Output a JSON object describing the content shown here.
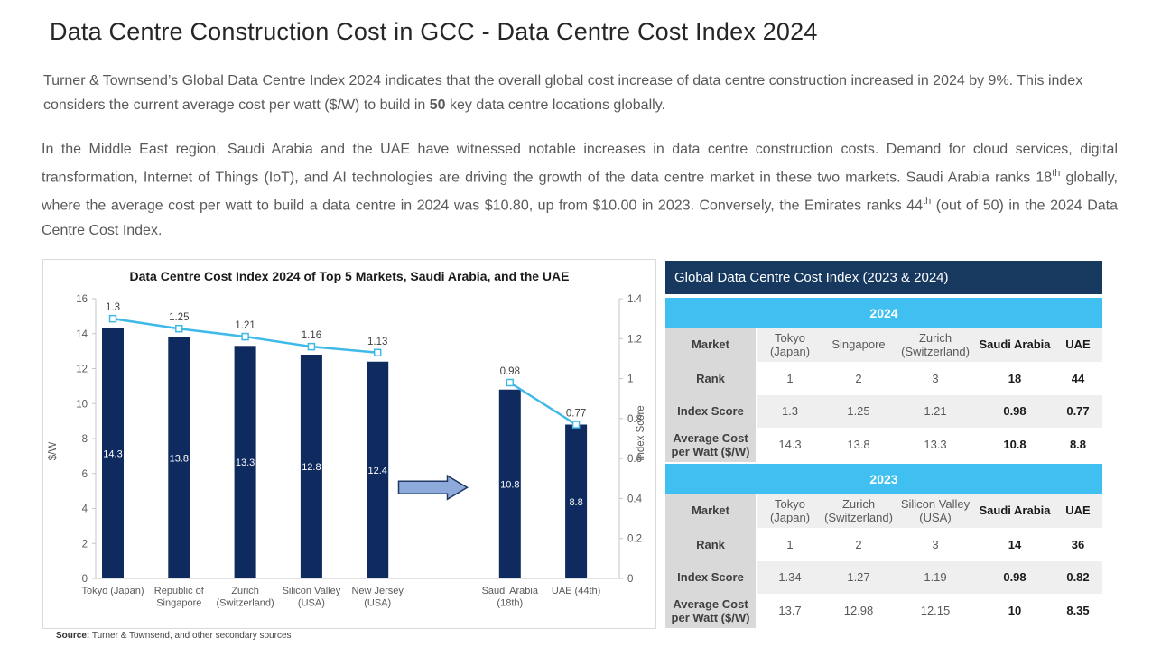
{
  "page": {
    "title": "Data Centre Construction Cost in GCC - Data Centre Cost Index 2024",
    "paragraph1_segments": [
      {
        "text": "Turner & Townsend’s Global Data Centre Index 2024 indicates that the overall global cost increase of data centre construction increased in 2024 by 9%. This index considers the current average cost per watt ($/W) to build in "
      },
      {
        "text": "50",
        "bold": true
      },
      {
        "text": " key data centre locations globally."
      }
    ],
    "paragraph2_segments": [
      {
        "text": "In the Middle East region, Saudi Arabia and the UAE have witnessed notable increases in data centre construction costs. Demand for cloud services, digital transformation, Internet of Things (IoT), and AI technologies are driving the growth of the data centre market in these two markets. Saudi Arabia ranks 18"
      },
      {
        "text": "th",
        "sup": true
      },
      {
        "text": " globally, where the average cost per watt to build a data centre in 2024 was $10.80, up from $10.00 in 2023. Conversely, the Emirates ranks 44"
      },
      {
        "text": "th",
        "sup": true
      },
      {
        "text": " (out of 50) in the 2024 Data Centre Cost Index."
      }
    ],
    "source_label": "Source:",
    "source_text": " Turner & Townsend, and other secondary sources"
  },
  "chart_data": {
    "type": "bar",
    "title": "Data Centre Cost Index 2024  of Top 5 Markets, Saudi Arabia, and the UAE",
    "left_axis": {
      "label": "$/W",
      "min": 0,
      "max": 16,
      "step": 2
    },
    "right_axis": {
      "label": "Index Score",
      "min": 0,
      "max": 1.4,
      "step": 0.2
    },
    "slots": 8,
    "categories": [
      {
        "slot": 0,
        "label_lines": [
          "Tokyo (Japan)"
        ],
        "cost_per_watt": 14.3,
        "index_score": 1.3
      },
      {
        "slot": 1,
        "label_lines": [
          "Republic of",
          "Singapore"
        ],
        "cost_per_watt": 13.8,
        "index_score": 1.25
      },
      {
        "slot": 2,
        "label_lines": [
          "Zurich",
          "(Switzerland)"
        ],
        "cost_per_watt": 13.3,
        "index_score": 1.21
      },
      {
        "slot": 3,
        "label_lines": [
          "Silicon Valley",
          "(USA)"
        ],
        "cost_per_watt": 12.8,
        "index_score": 1.16
      },
      {
        "slot": 4,
        "label_lines": [
          "New Jersey",
          "(USA)"
        ],
        "cost_per_watt": 12.4,
        "index_score": 1.13
      },
      {
        "slot": 6,
        "label_lines": [
          "Saudi Arabia",
          "(18th)"
        ],
        "cost_per_watt": 10.8,
        "index_score": 0.98
      },
      {
        "slot": 7,
        "label_lines": [
          "UAE (44th)"
        ],
        "cost_per_watt": 8.8,
        "index_score": 0.77
      }
    ],
    "line_segments": [
      [
        0,
        1,
        2,
        3,
        4
      ],
      [
        5,
        6
      ]
    ],
    "series": [
      {
        "name": "Average cost per watt ($/W)",
        "values": [
          14.3,
          13.8,
          13.3,
          12.8,
          12.4,
          10.8,
          8.8
        ]
      },
      {
        "name": "Index Score",
        "values": [
          1.3,
          1.25,
          1.21,
          1.16,
          1.13,
          0.98,
          0.77
        ]
      }
    ],
    "colors": {
      "bar": "#0e2a5e",
      "line": "#3fb9e8",
      "arrow_fill": "#8eaadb",
      "arrow_stroke": "#1f3864",
      "axis": "#c6c6c6",
      "tick_text": "#595959",
      "bar_label": "#ffffff",
      "point_label": "#404040"
    }
  },
  "table": {
    "title": "Global Data Centre Cost Index (2023 & 2024)",
    "bold_value_columns": [
      3,
      4
    ],
    "sections": [
      {
        "year": "2024",
        "rows": [
          {
            "label": "Market",
            "values": [
              "Tokyo (Japan)",
              "Singapore",
              "Zurich (Switzerland)",
              "Saudi Arabia",
              "UAE"
            ]
          },
          {
            "label": "Rank",
            "values": [
              "1",
              "2",
              "3",
              "18",
              "44"
            ]
          },
          {
            "label": "Index Score",
            "values": [
              "1.3",
              "1.25",
              "1.21",
              "0.98",
              "0.77"
            ]
          },
          {
            "label": "Average Cost per Watt ($/W)",
            "values": [
              "14.3",
              "13.8",
              "13.3",
              "10.8",
              "8.8"
            ]
          }
        ]
      },
      {
        "year": "2023",
        "rows": [
          {
            "label": "Market",
            "values": [
              "Tokyo (Japan)",
              "Zurich (Switzerland)",
              "Silicon Valley (USA)",
              "Saudi Arabia",
              "UAE"
            ]
          },
          {
            "label": "Rank",
            "values": [
              "1",
              "2",
              "3",
              "14",
              "36"
            ]
          },
          {
            "label": "Index Score",
            "values": [
              "1.34",
              "1.27",
              "1.19",
              "0.98",
              "0.82"
            ]
          },
          {
            "label": "Average Cost per Watt ($/W)",
            "values": [
              "13.7",
              "12.98",
              "12.15",
              "10",
              "8.35"
            ]
          }
        ]
      }
    ]
  }
}
